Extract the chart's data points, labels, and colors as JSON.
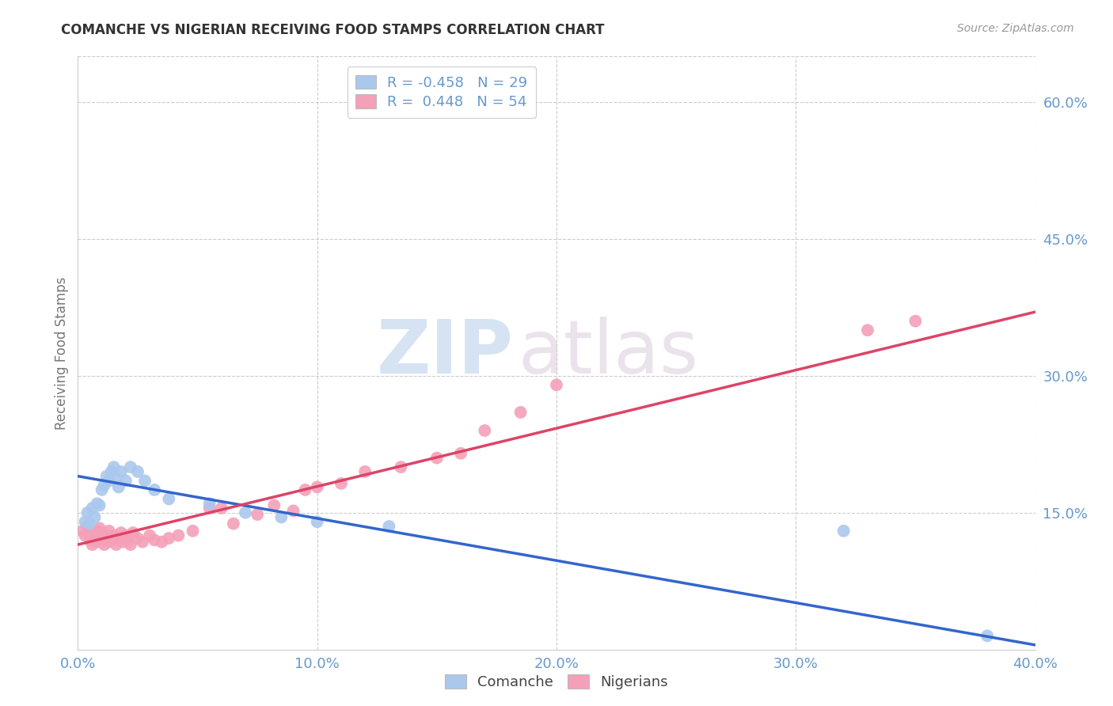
{
  "title": "COMANCHE VS NIGERIAN RECEIVING FOOD STAMPS CORRELATION CHART",
  "source": "Source: ZipAtlas.com",
  "ylabel": "Receiving Food Stamps",
  "watermark_zip": "ZIP",
  "watermark_atlas": "atlas",
  "xlim": [
    0.0,
    0.4
  ],
  "ylim": [
    0.0,
    0.65
  ],
  "xticks": [
    0.0,
    0.1,
    0.2,
    0.3,
    0.4
  ],
  "yticks_right": [
    0.15,
    0.3,
    0.45,
    0.6
  ],
  "ytick_labels_right": [
    "15.0%",
    "30.0%",
    "45.0%",
    "60.0%"
  ],
  "xtick_labels": [
    "0.0%",
    "10.0%",
    "20.0%",
    "30.0%",
    "40.0%"
  ],
  "comanche_R": -0.458,
  "comanche_N": 29,
  "nigerian_R": 0.448,
  "nigerian_N": 54,
  "comanche_color": "#aac8ed",
  "nigerian_color": "#f4a0b8",
  "comanche_line_color": "#3366cc",
  "nigerian_line_color": "#dd4466",
  "background_color": "#ffffff",
  "grid_color": "#cccccc",
  "title_color": "#333333",
  "axis_label_color": "#6699cc",
  "comanche_x": [
    0.003,
    0.004,
    0.005,
    0.006,
    0.007,
    0.008,
    0.009,
    0.01,
    0.011,
    0.012,
    0.013,
    0.014,
    0.015,
    0.016,
    0.017,
    0.018,
    0.02,
    0.022,
    0.025,
    0.028,
    0.032,
    0.038,
    0.055,
    0.07,
    0.085,
    0.1,
    0.13,
    0.32,
    0.38
  ],
  "comanche_y": [
    0.14,
    0.15,
    0.138,
    0.155,
    0.145,
    0.16,
    0.158,
    0.175,
    0.18,
    0.19,
    0.185,
    0.195,
    0.2,
    0.188,
    0.178,
    0.195,
    0.185,
    0.2,
    0.195,
    0.185,
    0.175,
    0.165,
    0.16,
    0.15,
    0.145,
    0.14,
    0.135,
    0.13,
    0.015
  ],
  "nigerian_x": [
    0.002,
    0.003,
    0.004,
    0.005,
    0.006,
    0.006,
    0.007,
    0.007,
    0.008,
    0.008,
    0.009,
    0.009,
    0.01,
    0.01,
    0.011,
    0.012,
    0.013,
    0.013,
    0.014,
    0.015,
    0.016,
    0.017,
    0.018,
    0.019,
    0.02,
    0.021,
    0.022,
    0.023,
    0.025,
    0.027,
    0.03,
    0.032,
    0.035,
    0.038,
    0.042,
    0.048,
    0.055,
    0.06,
    0.065,
    0.075,
    0.082,
    0.09,
    0.095,
    0.1,
    0.11,
    0.12,
    0.135,
    0.15,
    0.16,
    0.17,
    0.185,
    0.2,
    0.33,
    0.35
  ],
  "nigerian_y": [
    0.13,
    0.125,
    0.135,
    0.12,
    0.128,
    0.115,
    0.13,
    0.122,
    0.118,
    0.13,
    0.125,
    0.133,
    0.12,
    0.128,
    0.115,
    0.125,
    0.118,
    0.13,
    0.12,
    0.125,
    0.115,
    0.122,
    0.128,
    0.118,
    0.125,
    0.12,
    0.115,
    0.128,
    0.122,
    0.118,
    0.125,
    0.12,
    0.118,
    0.122,
    0.125,
    0.13,
    0.155,
    0.155,
    0.138,
    0.148,
    0.158,
    0.152,
    0.175,
    0.178,
    0.182,
    0.195,
    0.2,
    0.21,
    0.215,
    0.24,
    0.26,
    0.29,
    0.35,
    0.36
  ]
}
